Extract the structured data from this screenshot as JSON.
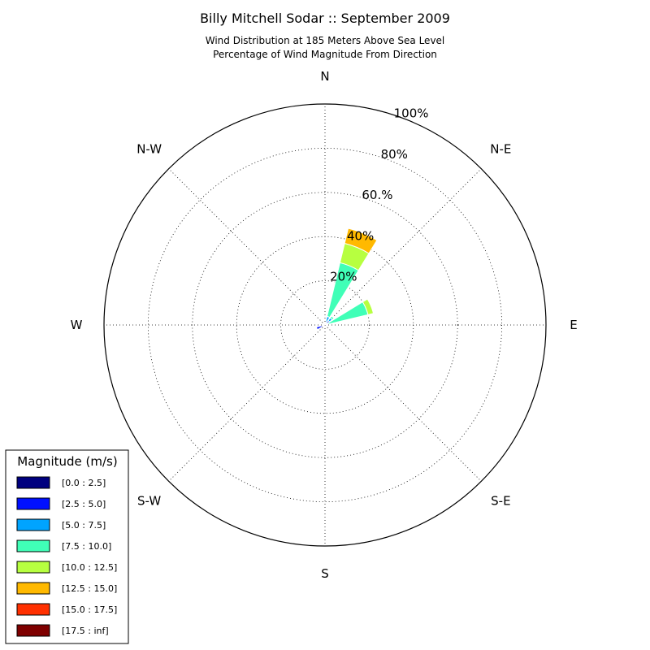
{
  "chart_data": {
    "type": "windrose",
    "title": "Billy Mitchell Sodar :: September 2009",
    "subtitle_lines": [
      "Wind Distribution at 185 Meters Above Sea Level",
      "Percentage of Wind Magnitude From Direction"
    ],
    "directions": [
      "N",
      "N-E",
      "E",
      "S-E",
      "S",
      "S-W",
      "W",
      "N-W"
    ],
    "radial_max": 100,
    "radial_ticks": [
      {
        "value": 20,
        "label": "20%"
      },
      {
        "value": 40,
        "label": "40%"
      },
      {
        "value": 60,
        "label": "60.%"
      },
      {
        "value": 80,
        "label": "80%"
      },
      {
        "value": 100,
        "label": "100%"
      }
    ],
    "grid": true,
    "legend": {
      "title": "Magnitude (m/s)",
      "placement": "bottom-left",
      "bins": [
        {
          "label": "[0.0 : 2.5]",
          "color": "#00007f"
        },
        {
          "label": "[2.5 : 5.0]",
          "color": "#0010ff"
        },
        {
          "label": "[5.0 : 7.5]",
          "color": "#00a4ff"
        },
        {
          "label": "[7.5 : 10.0]",
          "color": "#40ffb7"
        },
        {
          "label": "[10.0 : 12.5]",
          "color": "#b7ff40"
        },
        {
          "label": "[12.5 : 15.0]",
          "color": "#ffb900"
        },
        {
          "label": "[15.0 : 17.5]",
          "color": "#ff3000"
        },
        {
          "label": "[17.5 : inf]",
          "color": "#7f0000"
        }
      ]
    },
    "sectors": [
      {
        "direction_deg": 22.5,
        "cumulative": [
          0.3,
          1.0,
          4.0,
          29.0,
          38.0,
          45.0,
          45.0,
          45.0
        ]
      },
      {
        "direction_deg": 45.0,
        "cumulative": [
          0.3,
          2.5,
          4.0,
          5.0,
          5.0,
          5.0,
          5.0,
          5.0
        ]
      },
      {
        "direction_deg": 67.5,
        "cumulative": [
          0.3,
          0.8,
          1.5,
          20.0,
          22.5,
          22.5,
          22.5,
          22.5
        ]
      },
      {
        "direction_deg": 247.5,
        "cumulative": [
          0.5,
          4.0,
          4.0,
          4.0,
          4.0,
          4.0,
          4.0,
          4.0
        ]
      },
      {
        "direction_deg": 337.5,
        "cumulative": [
          0.3,
          1.2,
          1.2,
          1.2,
          1.2,
          1.2,
          1.2,
          1.2
        ]
      }
    ]
  }
}
